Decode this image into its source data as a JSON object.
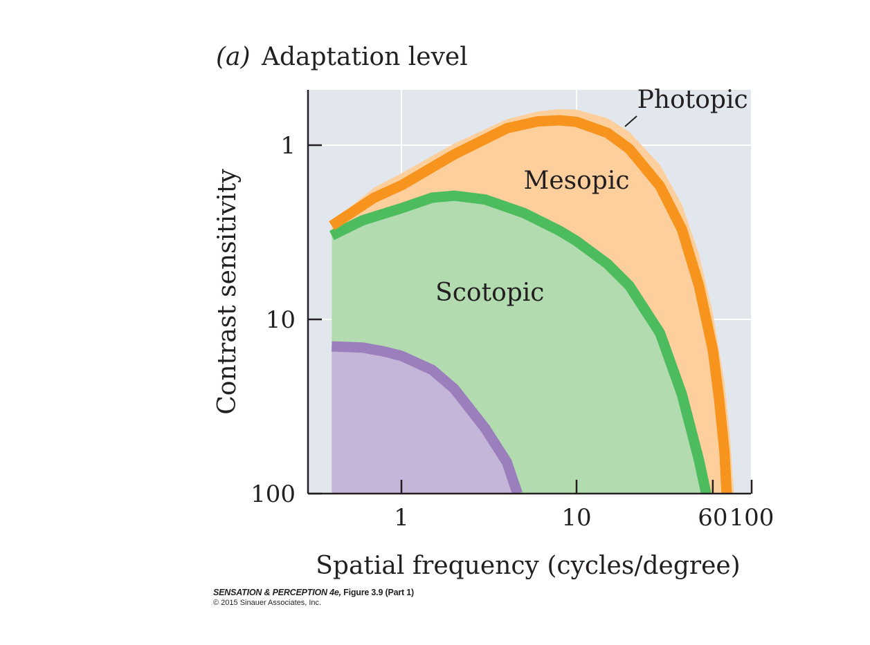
{
  "chart_data": {
    "type": "area",
    "panel_label": "(a)",
    "title": "Adaptation level",
    "xlabel": "Spatial frequency (cycles/degree)",
    "ylabel": "Contrast sensitivity",
    "x_scale": "log",
    "y_scale": "log",
    "y_inverted": true,
    "xlim": [
      0.37,
      100
    ],
    "ylim": [
      0.5,
      100
    ],
    "x_ticks": [
      {
        "value": 1,
        "label": "1"
      },
      {
        "value": 10,
        "label": "10"
      },
      {
        "value": 60,
        "label": "60"
      },
      {
        "value": 100,
        "label": "100"
      }
    ],
    "y_ticks": [
      {
        "value": 1,
        "label": "1"
      },
      {
        "value": 10,
        "label": "10"
      },
      {
        "value": 100,
        "label": "100"
      }
    ],
    "gridlines_x": [
      1,
      10
    ],
    "gridlines_y": [
      1,
      10
    ],
    "grid": true,
    "series": [
      {
        "name": "Photopic",
        "region_color": "#fccf9d",
        "curve_color": "#f7941d",
        "fill_to": "Mesopic",
        "upper": [
          [
            0.4,
            2.7
          ],
          [
            0.5,
            2.3
          ],
          [
            0.7,
            1.75
          ],
          [
            1,
            1.45
          ],
          [
            2,
            0.98
          ],
          [
            4,
            0.71
          ],
          [
            6,
            0.64
          ],
          [
            8,
            0.62
          ],
          [
            10,
            0.625
          ],
          [
            15,
            0.7
          ],
          [
            20,
            0.84
          ],
          [
            30,
            1.3
          ],
          [
            40,
            2.2
          ],
          [
            50,
            4.2
          ],
          [
            60,
            9.2
          ],
          [
            70,
            23
          ],
          [
            75,
            45
          ],
          [
            78,
            80
          ],
          [
            79.5,
            100
          ]
        ],
        "points": [
          [
            0.4,
            2.9
          ],
          [
            0.5,
            2.5
          ],
          [
            0.7,
            2.0
          ],
          [
            1,
            1.7
          ],
          [
            2,
            1.13
          ],
          [
            4,
            0.8
          ],
          [
            6,
            0.73
          ],
          [
            8,
            0.72
          ],
          [
            10,
            0.735
          ],
          [
            15,
            0.85
          ],
          [
            20,
            1.05
          ],
          [
            30,
            1.72
          ],
          [
            40,
            3.05
          ],
          [
            50,
            6.4
          ],
          [
            60,
            15
          ],
          [
            65,
            28
          ],
          [
            70,
            58
          ],
          [
            72,
            100
          ]
        ]
      },
      {
        "name": "Mesopic",
        "region_color": "#b2dcb0",
        "curve_color": "#4dbc5e",
        "fill_to": "Scotopic",
        "points": [
          [
            0.4,
            3.3
          ],
          [
            0.6,
            2.7
          ],
          [
            1,
            2.3
          ],
          [
            1.5,
            2.0
          ],
          [
            2,
            1.95
          ],
          [
            3,
            2.05
          ],
          [
            5,
            2.45
          ],
          [
            8,
            3.1
          ],
          [
            10,
            3.55
          ],
          [
            15,
            4.8
          ],
          [
            20,
            6.4
          ],
          [
            30,
            12
          ],
          [
            40,
            27
          ],
          [
            50,
            64
          ],
          [
            55,
            100
          ]
        ]
      },
      {
        "name": "Scotopic",
        "region_color": "#c4b5d9",
        "curve_color": "#9b7fbd",
        "fill_to": "axis",
        "points": [
          [
            0.4,
            14.3
          ],
          [
            0.6,
            14.5
          ],
          [
            0.8,
            15.3
          ],
          [
            1,
            16.2
          ],
          [
            1.5,
            19.5
          ],
          [
            2,
            25
          ],
          [
            3,
            42
          ],
          [
            4,
            66
          ],
          [
            4.6,
            100
          ]
        ]
      }
    ],
    "region_labels": [
      {
        "text": "Photopic",
        "series": "Photopic",
        "x": 25,
        "y": 0.61
      },
      {
        "text": "Mesopic",
        "series": "Mesopic",
        "x": 10,
        "y": 1.78
      },
      {
        "text": "Scotopic",
        "series": "Scotopic",
        "x": 3.2,
        "y": 7.8
      }
    ],
    "background_color": "#e1e7ec"
  },
  "caption": {
    "line1_italic": "SENSATION & PERCEPTION 4e,",
    "line1_rest": " Figure 3.9 (Part 1)",
    "line2": "© 2015 Sinauer Associates, Inc."
  }
}
